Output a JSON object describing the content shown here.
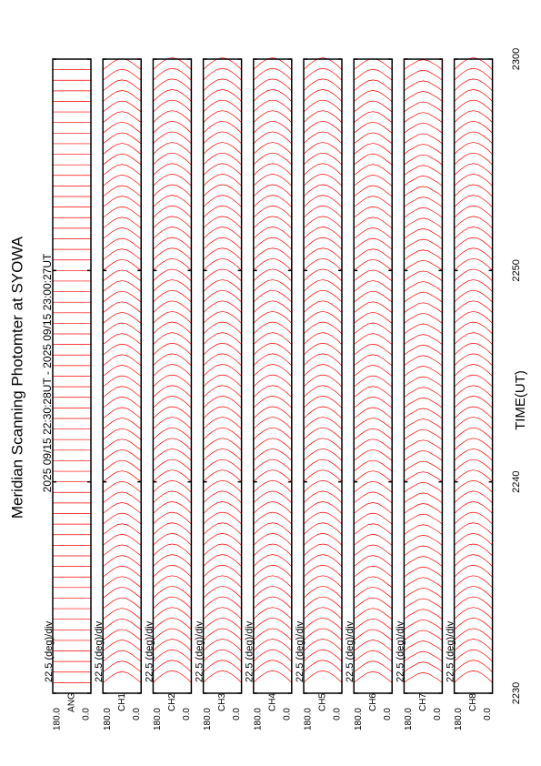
{
  "chart_data": {
    "type": "line",
    "title": "Meridian Scanning Photomter at SYOWA",
    "subtitle": "2025 09/15 22:30:28UT - 2025 09/15 23:00:27UT",
    "xlabel": "TIME(UT)",
    "xlim": [
      1350,
      1380
    ],
    "xticks": [
      {
        "value": 1350,
        "label": "2230"
      },
      {
        "value": 1360,
        "label": "2240"
      },
      {
        "value": 1370,
        "label": "2250"
      },
      {
        "value": 1380,
        "label": "2300"
      }
    ],
    "x": [
      1350.5,
      1351,
      1351.5,
      1352,
      1352.5,
      1353,
      1353.5,
      1354,
      1354.5,
      1355,
      1355.5,
      1356,
      1356.5,
      1357,
      1357.5,
      1358,
      1358.5,
      1359,
      1359.5,
      1360,
      1360.5,
      1361,
      1361.5,
      1362,
      1362.5,
      1363,
      1363.5,
      1364,
      1364.5,
      1365,
      1365.5,
      1366,
      1366.5,
      1367,
      1367.5,
      1368,
      1368.5,
      1369,
      1369.5,
      1370,
      1370.5,
      1371,
      1371.5,
      1372,
      1372.5,
      1373,
      1373.5,
      1374,
      1374.5,
      1375,
      1375.5,
      1376,
      1376.5,
      1377,
      1377.5,
      1378,
      1378.5,
      1379,
      1379.5
    ],
    "angles": [
      0,
      22.5,
      45,
      67.5,
      90,
      112.5,
      135,
      157.5,
      180
    ],
    "panels": [
      {
        "scale_label": "22.5 (deg)/div",
        "angle_ticks": [
          {
            "value": 180,
            "label": "180.0"
          },
          {
            "value": 0,
            "label": "0.0"
          }
        ],
        "series": [
          {
            "name": "ANG",
            "color": "#ff0000",
            "values": [
              0,
              0,
              0,
              0,
              0,
              0,
              0,
              0,
              0
            ]
          }
        ]
      },
      {
        "scale_label": "22.5 (deg)/div",
        "angle_ticks": [
          {
            "value": 180,
            "label": "180.0"
          },
          {
            "value": 0,
            "label": "0.0"
          }
        ],
        "series": [
          {
            "name": "CH1",
            "color": "#ff0000",
            "values": [
              0,
              4,
              8,
              11,
              12,
              11,
              8,
              4,
              0
            ]
          }
        ]
      },
      {
        "scale_label": "22.5 (deg)/div",
        "angle_ticks": [
          {
            "value": 180,
            "label": "180.0"
          },
          {
            "value": 0,
            "label": "0.0"
          }
        ],
        "series": [
          {
            "name": "CH2",
            "color": "#ff0000",
            "values": [
              0,
              5,
              9,
              12,
              13,
              12,
              9,
              5,
              0
            ]
          }
        ]
      },
      {
        "scale_label": "22.5 (deg)/div",
        "angle_ticks": [
          {
            "value": 180,
            "label": "180.0"
          },
          {
            "value": 0,
            "label": "0.0"
          }
        ],
        "series": [
          {
            "name": "CH3",
            "color": "#ff0000",
            "values": [
              0,
              5,
              9,
              12,
              13,
              12,
              9,
              5,
              0
            ]
          }
        ]
      },
      {
        "scale_label": "22.5 (deg)/div",
        "angle_ticks": [
          {
            "value": 180,
            "label": "180.0"
          },
          {
            "value": 0,
            "label": "0.0"
          }
        ],
        "series": [
          {
            "name": "CH4",
            "color": "#ff0000",
            "values": [
              0,
              5,
              9,
              12,
              13,
              12,
              9,
              5,
              0
            ]
          }
        ]
      },
      {
        "scale_label": "22.5 (deg)/div",
        "angle_ticks": [
          {
            "value": 180,
            "label": "180.0"
          },
          {
            "value": 0,
            "label": "0.0"
          }
        ],
        "series": [
          {
            "name": "CH5",
            "color": "#ff0000",
            "values": [
              0,
              5,
              9,
              12,
              13,
              12,
              9,
              5,
              0
            ]
          }
        ]
      },
      {
        "scale_label": "22.5 (deg)/div",
        "angle_ticks": [
          {
            "value": 180,
            "label": "180.0"
          },
          {
            "value": 0,
            "label": "0.0"
          }
        ],
        "series": [
          {
            "name": "CH6",
            "color": "#ff0000",
            "values": [
              0,
              4,
              8,
              11,
              12,
              11,
              8,
              4,
              0
            ]
          }
        ]
      },
      {
        "scale_label": "22.5 (deg)/div",
        "angle_ticks": [
          {
            "value": 180,
            "label": "180.0"
          },
          {
            "value": 0,
            "label": "0.0"
          }
        ],
        "series": [
          {
            "name": "CH7",
            "color": "#ff0000",
            "values": [
              0,
              4,
              7,
              10,
              11,
              10,
              7,
              4,
              0
            ]
          }
        ]
      },
      {
        "scale_label": "22.5 (deg)/div",
        "angle_ticks": [
          {
            "value": 180,
            "label": "180.0"
          },
          {
            "value": 0,
            "label": "0.0"
          }
        ],
        "series": [
          {
            "name": "CH8",
            "color": "#ff0000",
            "values": [
              0,
              5,
              9,
              12,
              13,
              12,
              9,
              5,
              0
            ]
          }
        ]
      }
    ]
  }
}
